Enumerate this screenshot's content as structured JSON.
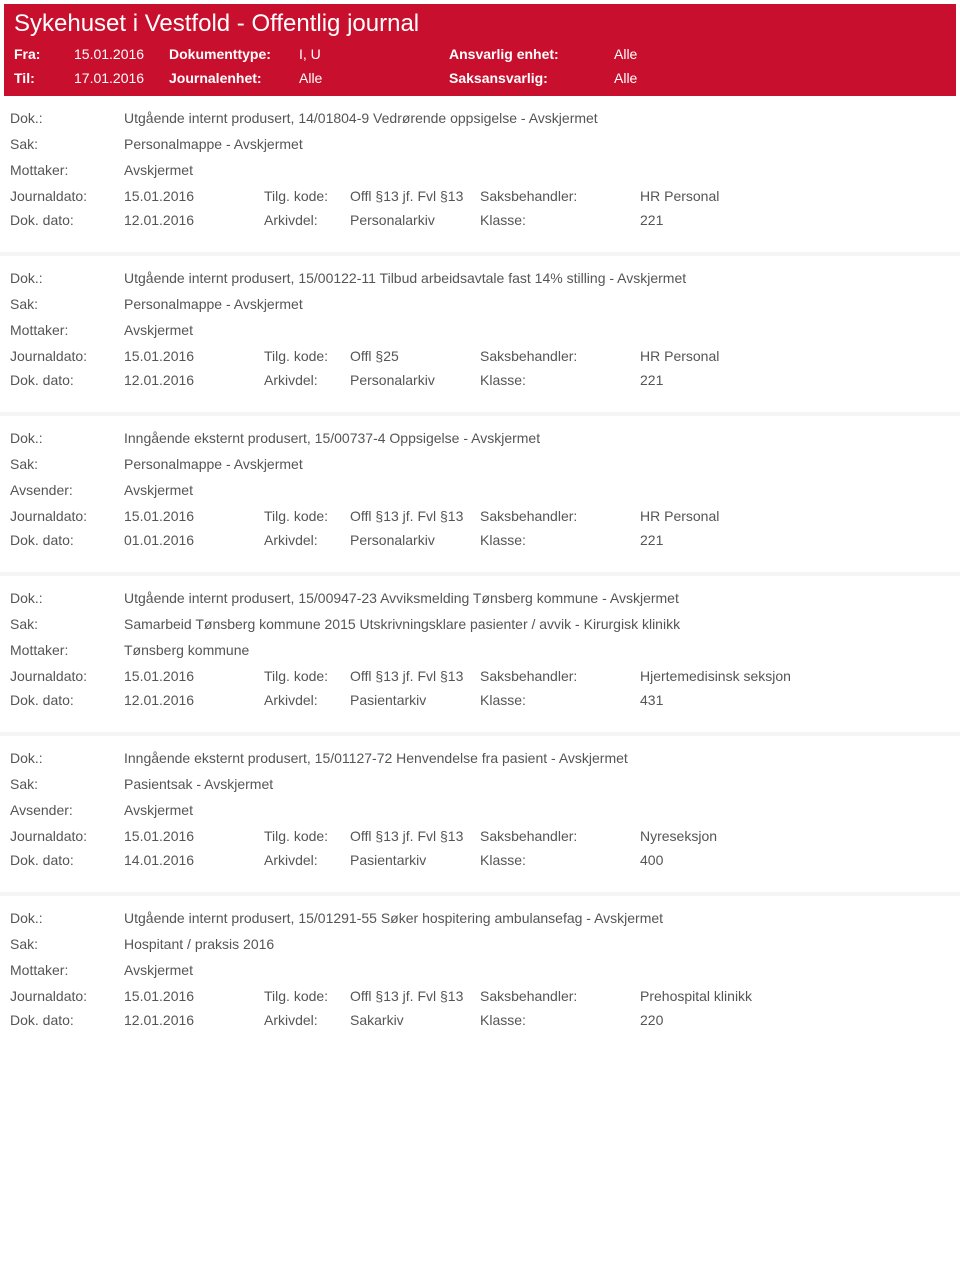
{
  "header": {
    "title": "Sykehuset i Vestfold - Offentlig journal",
    "fra_label": "Fra:",
    "til_label": "Til:",
    "fra_value": "15.01.2016",
    "til_value": "17.01.2016",
    "doktype_label": "Dokumenttype:",
    "journalenhet_label": "Journalenhet:",
    "doktype_value": "I, U",
    "journalenhet_value": "Alle",
    "enhet_label": "Ansvarlig enhet:",
    "saks_label": "Saksansvarlig:",
    "enhet_value": "Alle",
    "saks_value": "Alle"
  },
  "labels": {
    "dok": "Dok.:",
    "sak": "Sak:",
    "mottaker": "Mottaker:",
    "avsender": "Avsender:",
    "journaldato": "Journaldato:",
    "dokdato": "Dok. dato:",
    "tilgkode": "Tilg. kode:",
    "arkivdel": "Arkivdel:",
    "saksbehandler": "Saksbehandler:",
    "klasse": "Klasse:"
  },
  "entries": [
    {
      "dok": "Utgående internt produsert, 14/01804-9 Vedrørende oppsigelse - Avskjermet",
      "sak": "Personalmappe - Avskjermet",
      "party_label": "Mottaker:",
      "party_value": "Avskjermet",
      "journaldato": "15.01.2016",
      "tilgkode": "Offl §13 jf. Fvl §13",
      "saksbehandler": "HR Personal",
      "dokdato": "12.01.2016",
      "arkivdel": "Personalarkiv",
      "klasse": "221"
    },
    {
      "dok": "Utgående internt produsert, 15/00122-11 Tilbud arbeidsavtale fast 14% stilling - Avskjermet",
      "sak": "Personalmappe - Avskjermet",
      "party_label": "Mottaker:",
      "party_value": "Avskjermet",
      "journaldato": "15.01.2016",
      "tilgkode": "Offl §25",
      "saksbehandler": "HR Personal",
      "dokdato": "12.01.2016",
      "arkivdel": "Personalarkiv",
      "klasse": "221"
    },
    {
      "dok": "Inngående eksternt produsert, 15/00737-4 Oppsigelse - Avskjermet",
      "sak": "Personalmappe - Avskjermet",
      "party_label": "Avsender:",
      "party_value": "Avskjermet",
      "journaldato": "15.01.2016",
      "tilgkode": "Offl §13 jf. Fvl §13",
      "saksbehandler": "HR Personal",
      "dokdato": "01.01.2016",
      "arkivdel": "Personalarkiv",
      "klasse": "221"
    },
    {
      "dok": "Utgående internt produsert, 15/00947-23 Avviksmelding Tønsberg kommune - Avskjermet",
      "sak": "Samarbeid Tønsberg kommune 2015 Utskrivningsklare pasienter / avvik - Kirurgisk klinikk",
      "party_label": "Mottaker:",
      "party_value": "Tønsberg kommune",
      "journaldato": "15.01.2016",
      "tilgkode": "Offl §13 jf. Fvl §13",
      "saksbehandler": "Hjertemedisinsk seksjon",
      "dokdato": "12.01.2016",
      "arkivdel": "Pasientarkiv",
      "klasse": "431"
    },
    {
      "dok": "Inngående eksternt produsert, 15/01127-72 Henvendelse fra pasient - Avskjermet",
      "sak": "Pasientsak - Avskjermet",
      "party_label": "Avsender:",
      "party_value": "Avskjermet",
      "journaldato": "15.01.2016",
      "tilgkode": "Offl §13 jf. Fvl §13",
      "saksbehandler": "Nyreseksjon",
      "dokdato": "14.01.2016",
      "arkivdel": "Pasientarkiv",
      "klasse": "400"
    },
    {
      "dok": "Utgående internt produsert, 15/01291-55 Søker hospitering ambulansefag - Avskjermet",
      "sak": "Hospitant / praksis 2016",
      "party_label": "Mottaker:",
      "party_value": "Avskjermet",
      "journaldato": "15.01.2016",
      "tilgkode": "Offl §13 jf. Fvl §13",
      "saksbehandler": "Prehospital klinikk",
      "dokdato": "12.01.2016",
      "arkivdel": "Sakarkiv",
      "klasse": "220"
    }
  ]
}
